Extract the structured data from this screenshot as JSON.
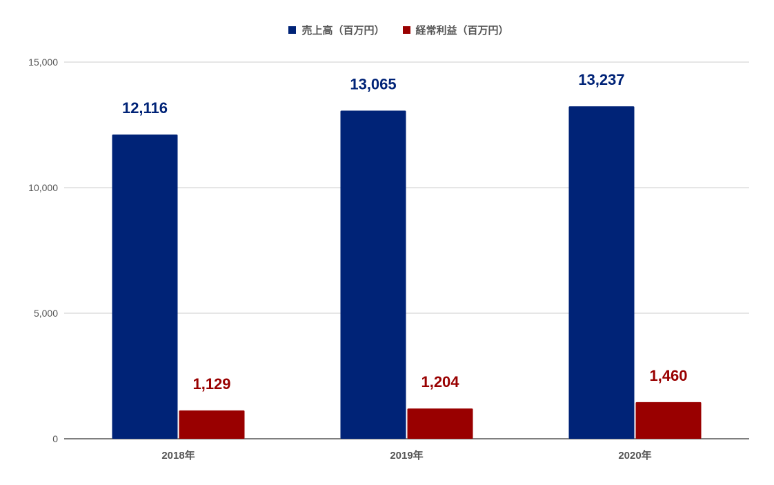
{
  "chart_data": {
    "type": "bar",
    "title": "",
    "xlabel": "",
    "ylabel": "",
    "categories": [
      "2018年",
      "2019年",
      "2020年"
    ],
    "series": [
      {
        "name": "売上高（百万円）",
        "color": "#002377",
        "values": [
          12116,
          13065,
          13237
        ],
        "labels": [
          "12,116",
          "13,065",
          "13,237"
        ]
      },
      {
        "name": "経常利益（百万円）",
        "color": "#990000",
        "values": [
          1129,
          1204,
          1460
        ],
        "labels": [
          "1,129",
          "1,204",
          "1,460"
        ]
      }
    ],
    "ylim": [
      0,
      15000
    ],
    "y_ticks": [
      0,
      5000,
      10000,
      15000
    ],
    "y_tick_labels": [
      "0",
      "5,000",
      "10,000",
      "15,000"
    ],
    "grid": true,
    "legend_position": "top-center",
    "gridline_color": "#cccccc",
    "axis_label_color": "#555555"
  }
}
